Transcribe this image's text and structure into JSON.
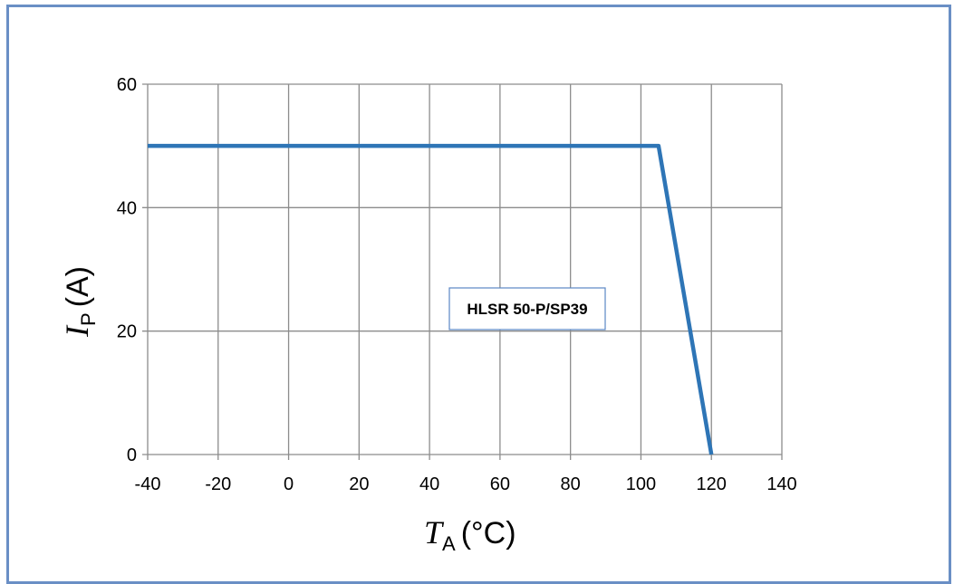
{
  "chart_data": {
    "type": "line",
    "x_axis": {
      "symbol": "T",
      "subscript": "A",
      "unit": "(°C)",
      "range": [
        -40,
        140
      ],
      "ticks": [
        -40,
        -20,
        0,
        20,
        40,
        60,
        80,
        100,
        120,
        140
      ]
    },
    "y_axis": {
      "symbol": "I",
      "subscript": "P",
      "unit": "(A)",
      "range": [
        0,
        60
      ],
      "ticks": [
        0,
        20,
        40,
        60
      ]
    },
    "grid": true,
    "series": [
      {
        "color": "#2e75b6",
        "points": [
          [
            -40,
            50
          ],
          [
            105,
            50
          ],
          [
            120,
            0
          ]
        ]
      }
    ],
    "annotation": {
      "text": "HLSR 50-P/SP39",
      "x": 60,
      "y": 21
    }
  }
}
